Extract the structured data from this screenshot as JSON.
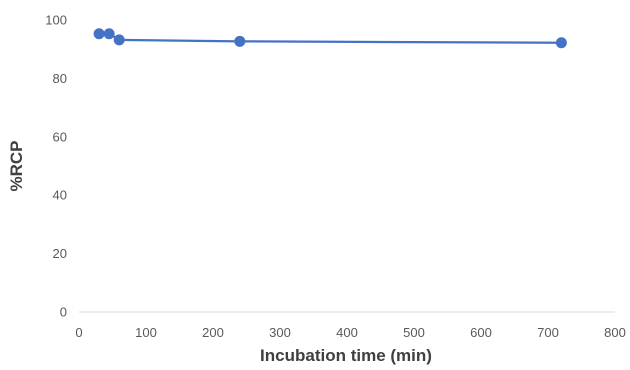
{
  "chart_data": {
    "type": "line",
    "xlabel": "Incubation time (min)",
    "ylabel": "%RCP",
    "xlim": [
      0,
      800
    ],
    "ylim": [
      0,
      100
    ],
    "x_ticks": [
      "0",
      "100",
      "200",
      "300",
      "400",
      "500",
      "600",
      "700",
      "800"
    ],
    "y_ticks": [
      "0",
      "20",
      "40",
      "60",
      "80",
      "100"
    ],
    "grid": false,
    "legend": "none",
    "series": [
      {
        "color": "#4472C4",
        "x": [
          30,
          45,
          60,
          240,
          720
        ],
        "y": [
          95.3,
          95.3,
          93.2,
          92.7,
          92.2
        ]
      }
    ]
  }
}
